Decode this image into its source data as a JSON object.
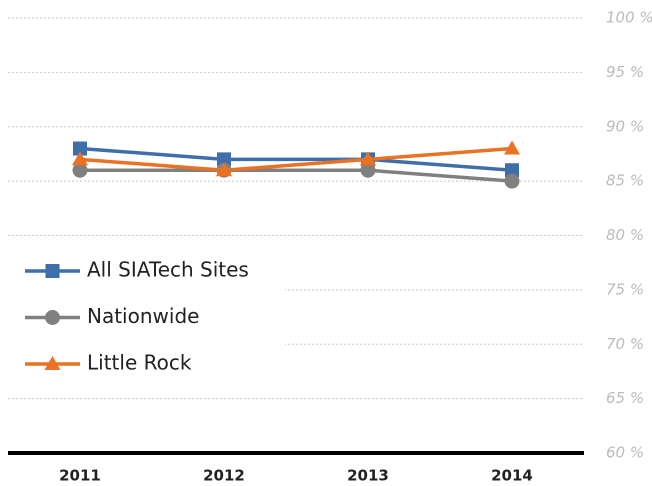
{
  "chart_data": {
    "type": "line",
    "categories": [
      "2011",
      "2012",
      "2013",
      "2014"
    ],
    "series": [
      {
        "name": "All SIATech Sites",
        "color": "#3f6faa",
        "marker": "square",
        "values": [
          88,
          87,
          87,
          86
        ]
      },
      {
        "name": "Nationwide",
        "color": "#808080",
        "marker": "circle",
        "values": [
          86,
          86,
          86,
          85
        ]
      },
      {
        "name": "Little Rock",
        "color": "#e97224",
        "marker": "triangle",
        "values": [
          87,
          86,
          87,
          88
        ]
      }
    ],
    "ylim": [
      60,
      100
    ],
    "yticks": [
      {
        "value": 60,
        "label": "60 %"
      },
      {
        "value": 65,
        "label": "65 %"
      },
      {
        "value": 70,
        "label": "70 %"
      },
      {
        "value": 75,
        "label": "75 %"
      },
      {
        "value": 80,
        "label": "80 %"
      },
      {
        "value": 85,
        "label": "85 %"
      },
      {
        "value": 90,
        "label": "90 %"
      },
      {
        "value": 95,
        "label": "95 %"
      },
      {
        "value": 100,
        "label": "100 %"
      }
    ],
    "grid": true,
    "legend": "left"
  }
}
